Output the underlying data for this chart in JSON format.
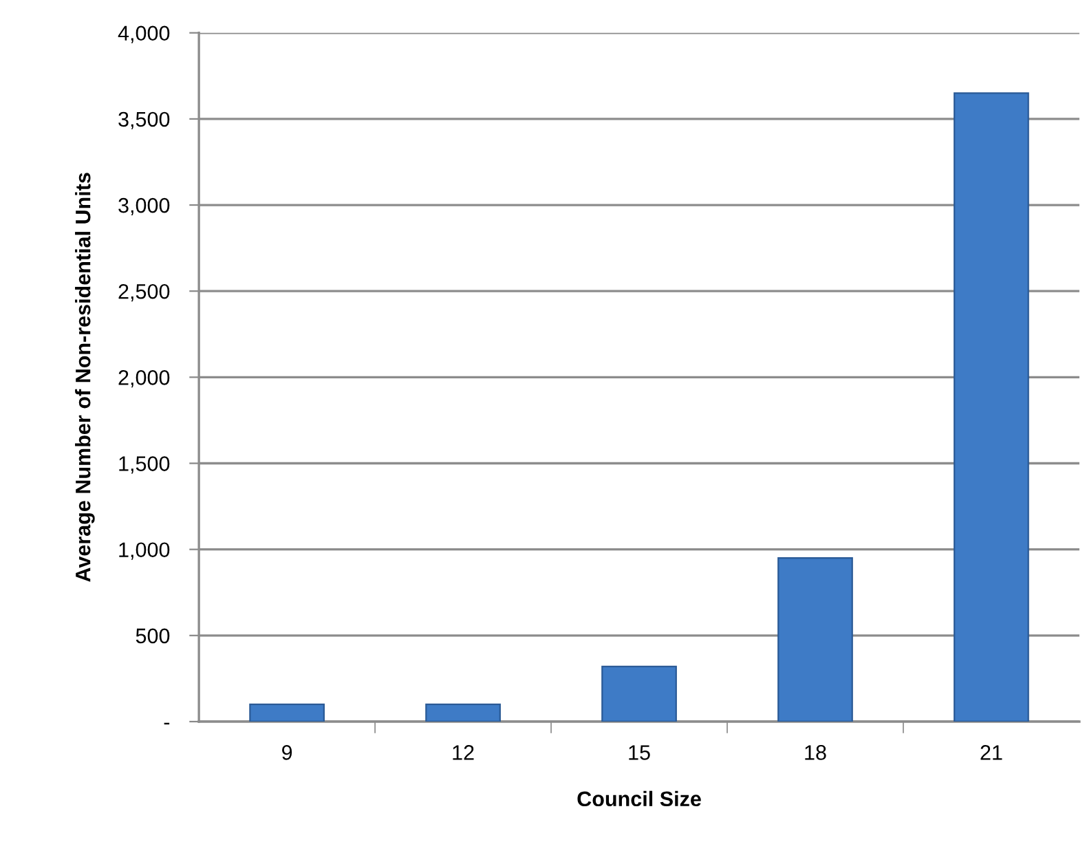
{
  "chart_data": {
    "type": "bar",
    "xlabel": "Council Size",
    "ylabel": "Average Number of Non-residential Units",
    "categories": [
      "9",
      "12",
      "15",
      "18",
      "21"
    ],
    "values": [
      100,
      100,
      320,
      950,
      3650
    ],
    "color": "#3e7bc6",
    "ylim": [
      0,
      4000
    ],
    "yticks": [
      {
        "value": 0,
        "label": "-"
      },
      {
        "value": 500,
        "label": "500"
      },
      {
        "value": 1000,
        "label": "1,000"
      },
      {
        "value": 1500,
        "label": "1,500"
      },
      {
        "value": 2000,
        "label": "2,000"
      },
      {
        "value": 2500,
        "label": "2,500"
      },
      {
        "value": 3000,
        "label": "3,000"
      },
      {
        "value": 3500,
        "label": "3,500"
      },
      {
        "value": 4000,
        "label": "4,000"
      }
    ],
    "grid": "y",
    "legend": false
  }
}
